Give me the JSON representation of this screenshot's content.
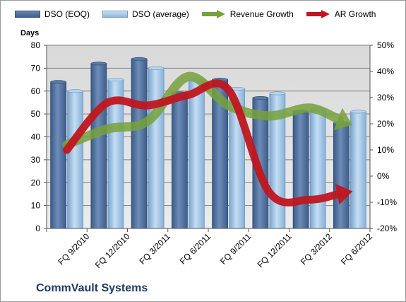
{
  "chart_data": {
    "type": "bar",
    "title": "",
    "footer_label": "CommVault Systems",
    "ylabel_left": "Days",
    "ylim_left": [
      0,
      80
    ],
    "left_ticks": [
      "0",
      "10",
      "20",
      "30",
      "40",
      "50",
      "60",
      "70",
      "80"
    ],
    "ylim_right": [
      -20,
      50
    ],
    "right_ticks": [
      "-20%",
      "-10%",
      "0%",
      "10%",
      "20%",
      "30%",
      "40%",
      "50%"
    ],
    "categories": [
      "FQ 9/2010",
      "FQ 12/2010",
      "FQ 3/2011",
      "FQ 6/2011",
      "FQ 9/2011",
      "FQ 12/2011",
      "FQ 3/2012",
      "FQ 6/2012"
    ],
    "series": [
      {
        "name": "DSO (EOQ)",
        "type": "bar",
        "axis": "left",
        "color": "#4f6f9c",
        "values": [
          64,
          72,
          74,
          59,
          65,
          57,
          51,
          46
        ]
      },
      {
        "name": "DSO (average)",
        "type": "bar",
        "axis": "left",
        "color": "#9cc3e6",
        "values": [
          60,
          65,
          70,
          65,
          61,
          59,
          52,
          51
        ]
      },
      {
        "name": "Revenue Growth",
        "type": "line",
        "axis": "right",
        "color": "#77a13c",
        "values": [
          12,
          18,
          21,
          38,
          27,
          23,
          26,
          20
        ]
      },
      {
        "name": "AR Growth",
        "type": "line",
        "axis": "right",
        "color": "#c0161f",
        "values": [
          10,
          28,
          27,
          31,
          33,
          -6,
          -9,
          -6
        ]
      }
    ],
    "grid": true,
    "legend": "top"
  }
}
